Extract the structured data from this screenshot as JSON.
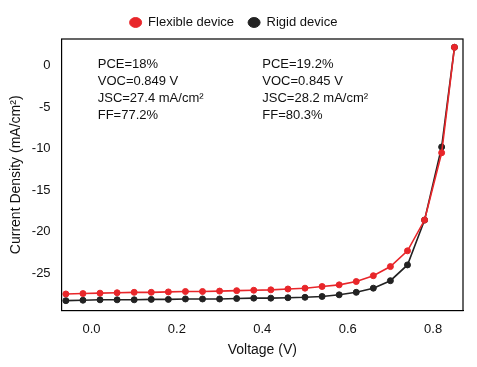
{
  "chart_data": {
    "type": "line",
    "x_label": "Voltage (V)",
    "y_label": "Current Density (mA/cm²)",
    "x": [
      -0.06,
      -0.02,
      0.02,
      0.06,
      0.1,
      0.14,
      0.18,
      0.22,
      0.26,
      0.3,
      0.34,
      0.38,
      0.42,
      0.46,
      0.5,
      0.54,
      0.58,
      0.62,
      0.66,
      0.7,
      0.74,
      0.78,
      0.82,
      0.85
    ],
    "series": [
      {
        "name": "Flexible device",
        "color": "#e8262a",
        "marker": "circle",
        "line_style": "solid",
        "values": [
          -27.5,
          -27.45,
          -27.4,
          -27.35,
          -27.3,
          -27.3,
          -27.25,
          -27.2,
          -27.2,
          -27.15,
          -27.1,
          -27.05,
          -27.0,
          -26.9,
          -26.8,
          -26.6,
          -26.4,
          -26.0,
          -25.3,
          -24.2,
          -22.3,
          -18.6,
          -10.5,
          2.2
        ]
      },
      {
        "name": "Rigid device",
        "color": "#222222",
        "marker": "circle",
        "line_style": "solid",
        "values": [
          -28.3,
          -28.25,
          -28.2,
          -28.2,
          -28.2,
          -28.15,
          -28.15,
          -28.1,
          -28.1,
          -28.1,
          -28.05,
          -28.0,
          -28.0,
          -27.95,
          -27.9,
          -27.8,
          -27.6,
          -27.3,
          -26.8,
          -25.9,
          -24.0,
          -18.6,
          -9.8,
          2.2
        ]
      }
    ],
    "annotations": [
      [
        "PCE=18%",
        "VOC=0.849 V",
        "JSC=27.4 mA/cm²",
        "FF=77.2%"
      ],
      [
        "PCE=19.2%",
        "VOC=0.845 V",
        "JSC=28.2 mA/cm²",
        "FF=80.3%"
      ]
    ],
    "xlim": [
      -0.07,
      0.87
    ],
    "xticks": [
      {
        "value": 0,
        "label": "0.0"
      },
      0.2,
      0.4,
      0.6,
      0.8
    ],
    "ylim": [
      -29.5,
      3.2
    ],
    "yticks": [
      -25,
      -20,
      -15,
      -10,
      -5,
      0
    ],
    "grid": false,
    "legend": "top"
  }
}
